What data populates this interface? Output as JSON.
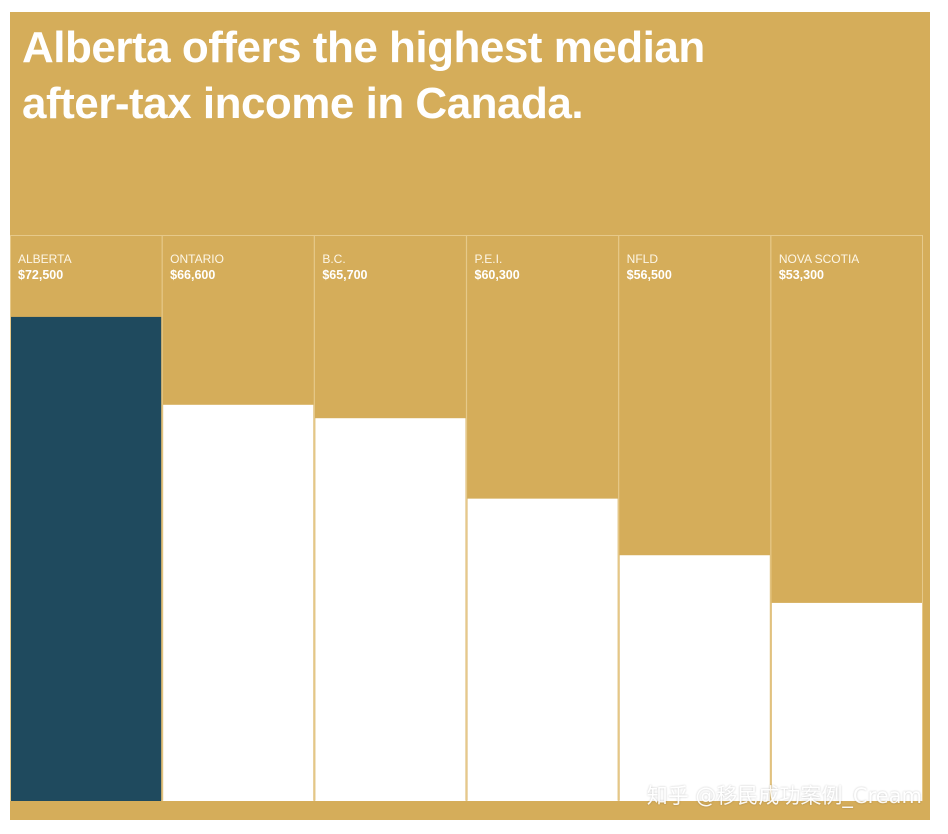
{
  "title": "Alberta offers the highest median after-tax income in Canada.",
  "watermark": "知乎 @移民成功案例_Cream",
  "colors": {
    "background": "#d5ad5a",
    "highlight": "#1f4a5e",
    "bar": "#ffffff",
    "divider": "#e6c98a"
  },
  "chart_data": {
    "type": "bar",
    "title": "Alberta offers the highest median after-tax income in Canada.",
    "categories": [
      "ALBERTA",
      "ONTARIO",
      "B.C.",
      "P.E.I.",
      "NFLD",
      "NOVA SCOTIA"
    ],
    "value_labels": [
      "$72,500",
      "$66,600",
      "$65,700",
      "$60,300",
      "$56,500",
      "$53,300"
    ],
    "values": [
      72500,
      66600,
      65700,
      60300,
      56500,
      53300
    ],
    "highlight_index": 0,
    "xlabel": "",
    "ylabel": "",
    "ylim": [
      40000,
      78000
    ],
    "grid": false,
    "legend": "none"
  }
}
